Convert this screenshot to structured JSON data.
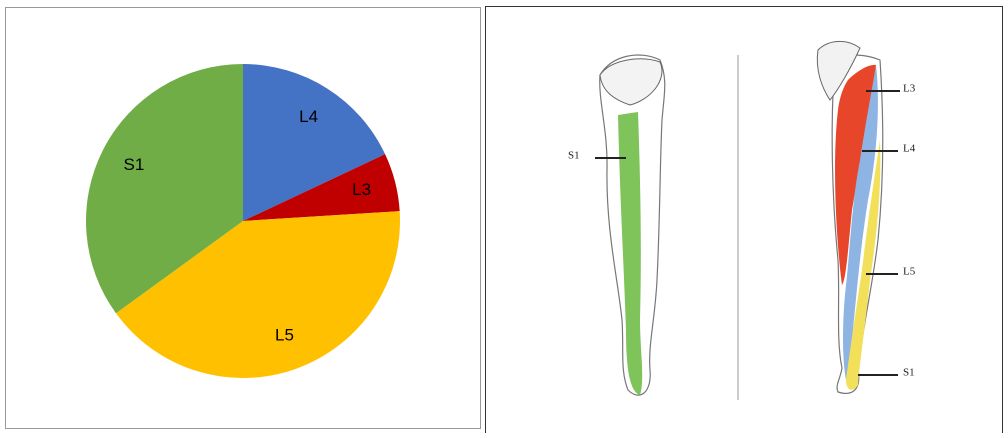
{
  "chart_data": {
    "type": "pie",
    "categories": [
      "L4",
      "L3",
      "L5",
      "S1"
    ],
    "values": [
      18,
      6,
      41,
      35
    ],
    "colors": [
      "#4472c4",
      "#c00000",
      "#ffc000",
      "#70ad47"
    ]
  },
  "illustration": {
    "back_leg_label": "S1",
    "front_leg_labels": [
      "L3",
      "L4",
      "L5",
      "S1"
    ]
  }
}
